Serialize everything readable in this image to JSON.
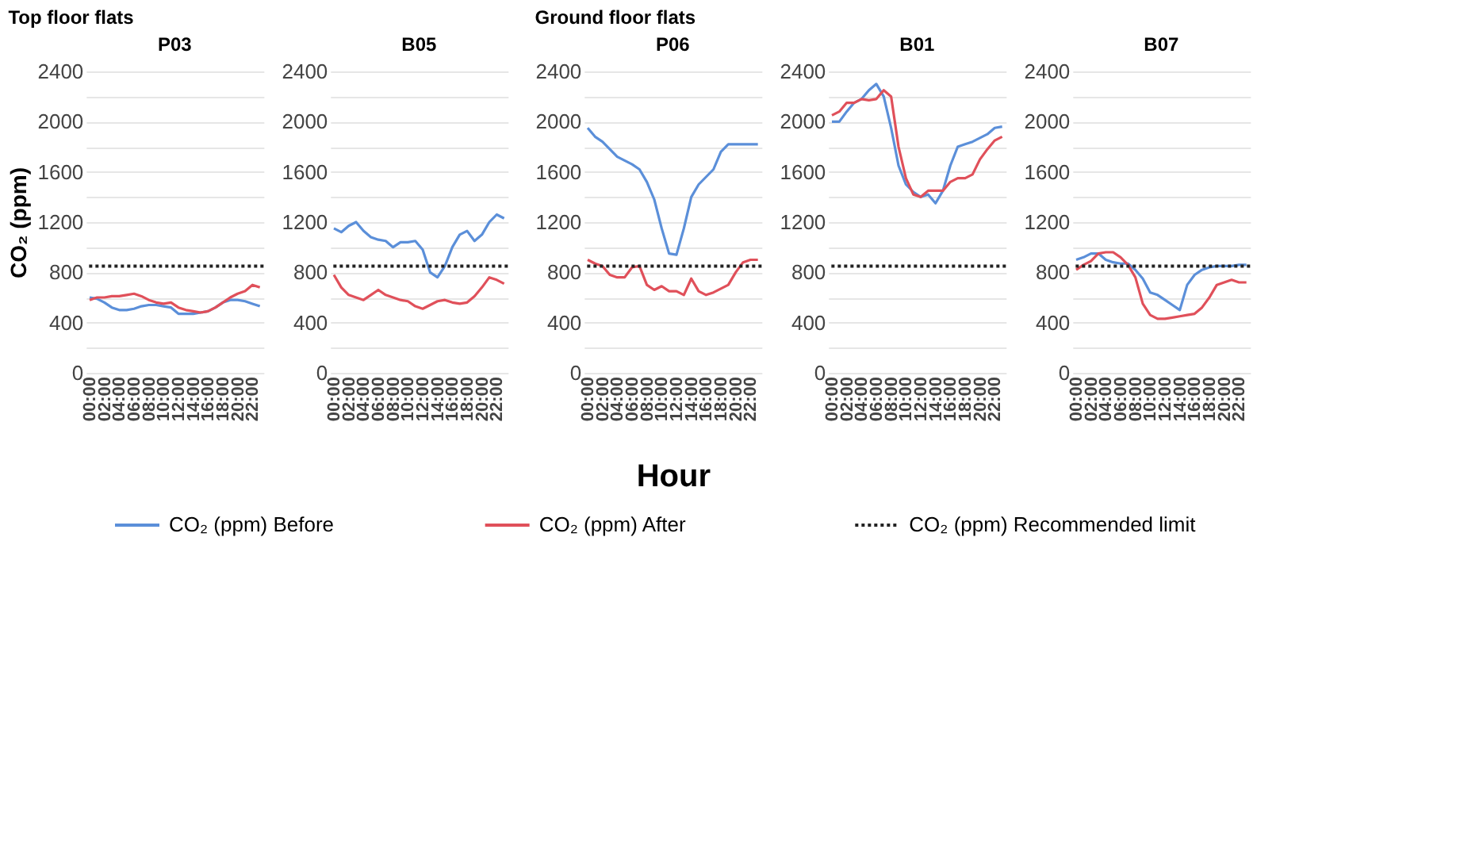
{
  "chart_data": [
    {
      "type": "line",
      "title": "P03",
      "annotations": [
        "Top floor flats"
      ],
      "ylabel": "CO₂ (ppm)",
      "categories": [
        "00:00",
        null,
        "02:00",
        null,
        "04:00",
        null,
        "06:00",
        null,
        "08:00",
        null,
        "10:00",
        null,
        "12:00",
        null,
        "14:00",
        null,
        "16:00",
        null,
        "18:00",
        null,
        "20:00",
        null,
        "22:00",
        null
      ],
      "series": [
        {
          "name": "CO₂ (ppm) Before",
          "color": "#5b8fd9",
          "values": [
            600,
            590,
            560,
            520,
            500,
            500,
            510,
            530,
            540,
            540,
            530,
            520,
            470,
            470,
            470,
            480,
            490,
            520,
            560,
            580,
            580,
            570,
            550,
            530
          ]
        },
        {
          "name": "CO₂ (ppm) After",
          "color": "#e0505a",
          "values": [
            580,
            600,
            600,
            610,
            610,
            620,
            630,
            610,
            580,
            560,
            550,
            560,
            520,
            500,
            490,
            480,
            490,
            520,
            560,
            600,
            630,
            650,
            700,
            680
          ]
        }
      ],
      "ref_lines": [
        {
          "axis": "y",
          "value": 850,
          "label": "CO₂ (ppm) Recommended limit",
          "color": "#222222",
          "line_style": "dotted"
        }
      ],
      "ylim": [
        0,
        2400
      ],
      "yticks": [
        0,
        {
          "value": 200,
          "label": null
        },
        400,
        {
          "value": 600,
          "label": null
        },
        800,
        {
          "value": 1000,
          "label": null
        },
        1200,
        {
          "value": 1400,
          "label": null
        },
        1600,
        {
          "value": 1800,
          "label": null
        },
        2000,
        {
          "value": 2200,
          "label": null
        },
        2400
      ],
      "grid": "y",
      "legend": "bottom"
    },
    {
      "type": "line",
      "title": "B05",
      "categories": [
        "00:00",
        null,
        "02:00",
        null,
        "04:00",
        null,
        "06:00",
        null,
        "08:00",
        null,
        "10:00",
        null,
        "12:00",
        null,
        "14:00",
        null,
        "16:00",
        null,
        "18:00",
        null,
        "20:00",
        null,
        "22:00",
        null
      ],
      "series": [
        {
          "color": "#5b8fd9",
          "values": [
            1150,
            1120,
            1170,
            1200,
            1130,
            1080,
            1060,
            1050,
            1000,
            1040,
            1040,
            1050,
            980,
            800,
            760,
            850,
            1000,
            1100,
            1130,
            1050,
            1100,
            1200,
            1260,
            1230
          ]
        },
        {
          "color": "#e0505a",
          "values": [
            780,
            680,
            620,
            600,
            580,
            620,
            660,
            620,
            600,
            580,
            570,
            530,
            510,
            540,
            570,
            580,
            560,
            550,
            560,
            610,
            680,
            760,
            740,
            710
          ]
        }
      ],
      "ref_lines": [
        {
          "axis": "y",
          "value": 850,
          "color": "#222222",
          "line_style": "dotted"
        }
      ],
      "ylim": [
        0,
        2400
      ],
      "yticks": [
        0,
        {
          "value": 200,
          "label": null
        },
        400,
        {
          "value": 600,
          "label": null
        },
        800,
        {
          "value": 1000,
          "label": null
        },
        1200,
        {
          "value": 1400,
          "label": null
        },
        1600,
        {
          "value": 1800,
          "label": null
        },
        2000,
        {
          "value": 2200,
          "label": null
        },
        2400
      ],
      "grid": "y"
    },
    {
      "type": "line",
      "title": "P06",
      "annotations": [
        "Ground floor flats"
      ],
      "xlabel": "Hour",
      "categories": [
        "00:00",
        null,
        "02:00",
        null,
        "04:00",
        null,
        "06:00",
        null,
        "08:00",
        null,
        "10:00",
        null,
        "12:00",
        null,
        "14:00",
        null,
        "16:00",
        null,
        "18:00",
        null,
        "20:00",
        null,
        "22:00",
        null
      ],
      "series": [
        {
          "color": "#5b8fd9",
          "values": [
            1950,
            1880,
            1840,
            1780,
            1720,
            1690,
            1660,
            1620,
            1520,
            1380,
            1150,
            950,
            940,
            1150,
            1400,
            1500,
            1560,
            1620,
            1760,
            1820,
            1820,
            1820,
            1820,
            1820
          ]
        },
        {
          "color": "#e0505a",
          "values": [
            900,
            870,
            850,
            780,
            760,
            760,
            840,
            850,
            700,
            660,
            690,
            650,
            650,
            620,
            750,
            650,
            620,
            640,
            670,
            700,
            800,
            880,
            900,
            900
          ]
        }
      ],
      "ref_lines": [
        {
          "axis": "y",
          "value": 850,
          "color": "#222222",
          "line_style": "dotted"
        }
      ],
      "ylim": [
        0,
        2400
      ],
      "yticks": [
        0,
        {
          "value": 200,
          "label": null
        },
        400,
        {
          "value": 600,
          "label": null
        },
        800,
        {
          "value": 1000,
          "label": null
        },
        1200,
        {
          "value": 1400,
          "label": null
        },
        1600,
        {
          "value": 1800,
          "label": null
        },
        2000,
        {
          "value": 2200,
          "label": null
        },
        2400
      ],
      "grid": "y"
    },
    {
      "type": "line",
      "title": "B01",
      "categories": [
        "00:00",
        null,
        "02:00",
        null,
        "04:00",
        null,
        "06:00",
        null,
        "08:00",
        null,
        "10:00",
        null,
        "12:00",
        null,
        "14:00",
        null,
        "16:00",
        null,
        "18:00",
        null,
        "20:00",
        null,
        "22:00",
        null
      ],
      "series": [
        {
          "color": "#5b8fd9",
          "values": [
            2000,
            2000,
            2080,
            2150,
            2180,
            2250,
            2300,
            2200,
            1950,
            1650,
            1500,
            1440,
            1400,
            1420,
            1350,
            1450,
            1650,
            1800,
            1820,
            1840,
            1870,
            1900,
            1950,
            1960
          ]
        },
        {
          "color": "#e0505a",
          "values": [
            2050,
            2080,
            2150,
            2150,
            2180,
            2170,
            2180,
            2250,
            2200,
            1800,
            1550,
            1420,
            1400,
            1450,
            1450,
            1450,
            1520,
            1550,
            1550,
            1580,
            1700,
            1780,
            1850,
            1880
          ]
        }
      ],
      "ref_lines": [
        {
          "axis": "y",
          "value": 850,
          "color": "#222222",
          "line_style": "dotted"
        }
      ],
      "ylim": [
        0,
        2400
      ],
      "yticks": [
        0,
        {
          "value": 200,
          "label": null
        },
        400,
        {
          "value": 600,
          "label": null
        },
        800,
        {
          "value": 1000,
          "label": null
        },
        1200,
        {
          "value": 1400,
          "label": null
        },
        1600,
        {
          "value": 1800,
          "label": null
        },
        2000,
        {
          "value": 2200,
          "label": null
        },
        2400
      ],
      "grid": "y"
    },
    {
      "type": "line",
      "title": "B07",
      "categories": [
        "00:00",
        null,
        "02:00",
        null,
        "04:00",
        null,
        "06:00",
        null,
        "08:00",
        null,
        "10:00",
        null,
        "12:00",
        null,
        "14:00",
        null,
        "16:00",
        null,
        "18:00",
        null,
        "20:00",
        null,
        "22:00",
        null
      ],
      "series": [
        {
          "color": "#5b8fd9",
          "values": [
            900,
            920,
            950,
            950,
            900,
            880,
            870,
            870,
            820,
            750,
            640,
            620,
            580,
            540,
            500,
            700,
            780,
            820,
            840,
            850,
            850,
            850,
            860,
            860
          ]
        },
        {
          "color": "#e0505a",
          "values": [
            820,
            860,
            890,
            950,
            960,
            960,
            920,
            860,
            760,
            550,
            460,
            430,
            430,
            440,
            450,
            460,
            470,
            520,
            600,
            700,
            720,
            740,
            720,
            720
          ]
        }
      ],
      "ref_lines": [
        {
          "axis": "y",
          "value": 850,
          "color": "#222222",
          "line_style": "dotted"
        }
      ],
      "ylim": [
        0,
        2400
      ],
      "yticks": [
        0,
        {
          "value": 200,
          "label": null
        },
        400,
        {
          "value": 600,
          "label": null
        },
        800,
        {
          "value": 1000,
          "label": null
        },
        1200,
        {
          "value": 1400,
          "label": null
        },
        1600,
        {
          "value": 1800,
          "label": null
        },
        2000,
        {
          "value": 2200,
          "label": null
        },
        2400
      ],
      "grid": "y"
    }
  ]
}
